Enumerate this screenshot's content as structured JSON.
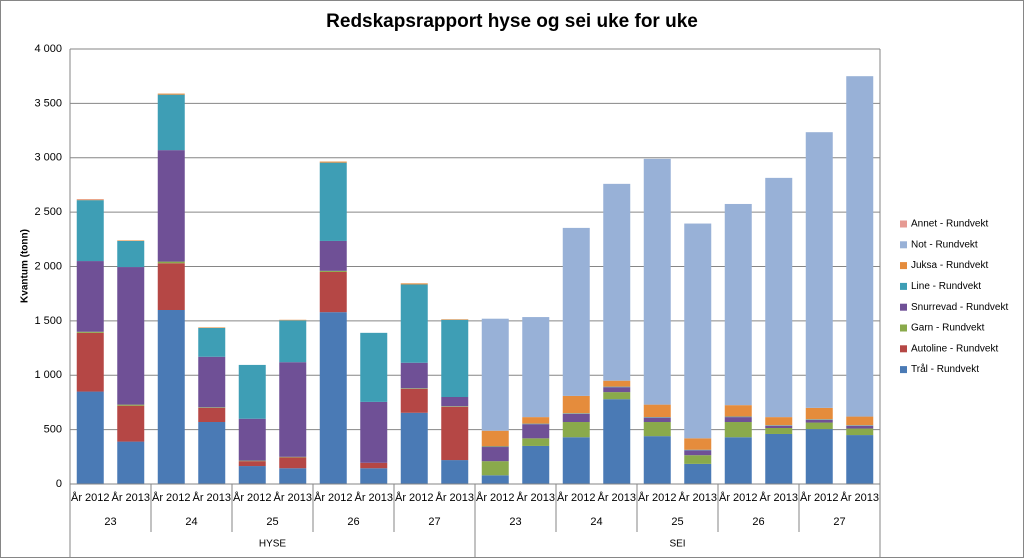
{
  "chart_data": {
    "type": "stacked_bar",
    "title": "Redskapsrapport hyse og sei uke for uke",
    "y_label": "Kvantum (tonn)",
    "category_groups": [
      {
        "label": "HYSE",
        "weeks": [
          {
            "label": "23",
            "categories": [
              "År 2012",
              "År 2013"
            ]
          },
          {
            "label": "24",
            "categories": [
              "År 2012",
              "År 2013"
            ]
          },
          {
            "label": "25",
            "categories": [
              "År 2012",
              "År 2013"
            ]
          },
          {
            "label": "26",
            "categories": [
              "År 2012",
              "År 2013"
            ]
          },
          {
            "label": "27",
            "categories": [
              "År 2012",
              "År 2013"
            ]
          }
        ]
      },
      {
        "label": "SEI",
        "weeks": [
          {
            "label": "23",
            "categories": [
              "År 2012",
              "År 2013"
            ]
          },
          {
            "label": "24",
            "categories": [
              "År 2012",
              "År 2013"
            ]
          },
          {
            "label": "25",
            "categories": [
              "År 2012",
              "År 2013"
            ]
          },
          {
            "label": "26",
            "categories": [
              "År 2012",
              "År 2013"
            ]
          },
          {
            "label": "27",
            "categories": [
              "År 2012",
              "År 2013"
            ]
          }
        ]
      }
    ],
    "series": [
      {
        "name": "Trål - Rundvekt",
        "color": "#4a7ab5",
        "values": [
          850,
          390,
          1600,
          570,
          165,
          145,
          1580,
          145,
          655,
          220,
          80,
          350,
          430,
          780,
          440,
          185,
          430,
          460,
          505,
          450
        ]
      },
      {
        "name": "Autoline - Rundvekt",
        "color": "#b54745",
        "values": [
          540,
          330,
          430,
          130,
          45,
          100,
          370,
          50,
          220,
          490,
          0,
          0,
          0,
          0,
          0,
          0,
          0,
          0,
          0,
          0
        ]
      },
      {
        "name": "Garn - Rundvekt",
        "color": "#8aaa4b",
        "values": [
          10,
          10,
          15,
          5,
          5,
          5,
          10,
          0,
          5,
          5,
          130,
          70,
          140,
          65,
          130,
          80,
          140,
          55,
          60,
          60
        ]
      },
      {
        "name": "Snurrevad - Rundvekt",
        "color": "#6f5096",
        "values": [
          650,
          1265,
          1025,
          465,
          385,
          870,
          275,
          560,
          235,
          85,
          130,
          130,
          75,
          45,
          40,
          45,
          45,
          20,
          25,
          25
        ]
      },
      {
        "name": "Line - Rundvekt",
        "color": "#3e9eb5",
        "values": [
          560,
          240,
          510,
          265,
          495,
          385,
          720,
          635,
          720,
          710,
          5,
          5,
          5,
          5,
          5,
          5,
          5,
          5,
          5,
          5
        ]
      },
      {
        "name": "Juksa - Rundvekt",
        "color": "#e58c3c",
        "values": [
          5,
          5,
          10,
          5,
          0,
          5,
          10,
          0,
          10,
          5,
          145,
          60,
          160,
          55,
          115,
          105,
          105,
          75,
          105,
          80
        ]
      },
      {
        "name": "Not - Rundvekt",
        "color": "#98b1d7",
        "values": [
          0,
          0,
          0,
          0,
          0,
          0,
          0,
          0,
          0,
          0,
          1030,
          920,
          1545,
          1810,
          2260,
          1975,
          1850,
          2200,
          2535,
          3130
        ]
      },
      {
        "name": "Annet - Rundvekt",
        "color": "#e69a93",
        "values": [
          5,
          0,
          0,
          0,
          0,
          0,
          0,
          0,
          0,
          0,
          0,
          0,
          0,
          0,
          0,
          0,
          0,
          0,
          0,
          0
        ]
      }
    ],
    "ylim": [
      0,
      4000
    ],
    "yticks": [
      0,
      500,
      {
        "value": 1000,
        "label": "1 000"
      },
      {
        "value": 1500,
        "label": "1 500"
      },
      {
        "value": 2000,
        "label": "2 000"
      },
      {
        "value": 2500,
        "label": "2 500"
      },
      {
        "value": 3000,
        "label": "3 000"
      },
      {
        "value": 3500,
        "label": "3 500"
      },
      {
        "value": 4000,
        "label": "4 000"
      }
    ],
    "grid": true,
    "legend": "right"
  }
}
